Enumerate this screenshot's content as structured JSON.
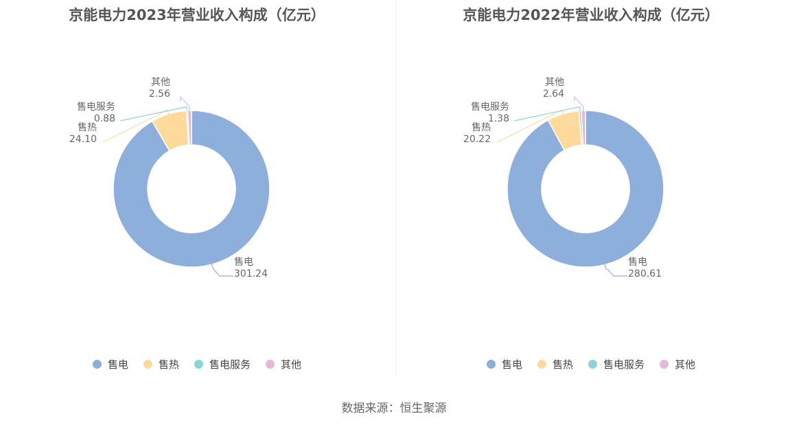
{
  "colors": [
    "#8eaedb",
    "#fdd99c",
    "#88d4d6",
    "#e7b7d8"
  ],
  "chart_data": [
    {
      "type": "pie",
      "title": "京能电力2023年营业收入构成（亿元）",
      "categories": [
        "售电",
        "售热",
        "售电服务",
        "其他"
      ],
      "values": [
        301.24,
        24.1,
        0.88,
        2.56
      ],
      "value_labels": [
        "301.24",
        "24.10",
        "0.88",
        "2.56"
      ],
      "legend": "bottom"
    },
    {
      "type": "pie",
      "title": "京能电力2022年营业收入构成（亿元）",
      "categories": [
        "售电",
        "售热",
        "售电服务",
        "其他"
      ],
      "values": [
        280.61,
        20.22,
        1.38,
        2.64
      ],
      "value_labels": [
        "280.61",
        "20.22",
        "1.38",
        "2.64"
      ],
      "legend": "bottom"
    }
  ],
  "source": "数据来源：恒生聚源"
}
